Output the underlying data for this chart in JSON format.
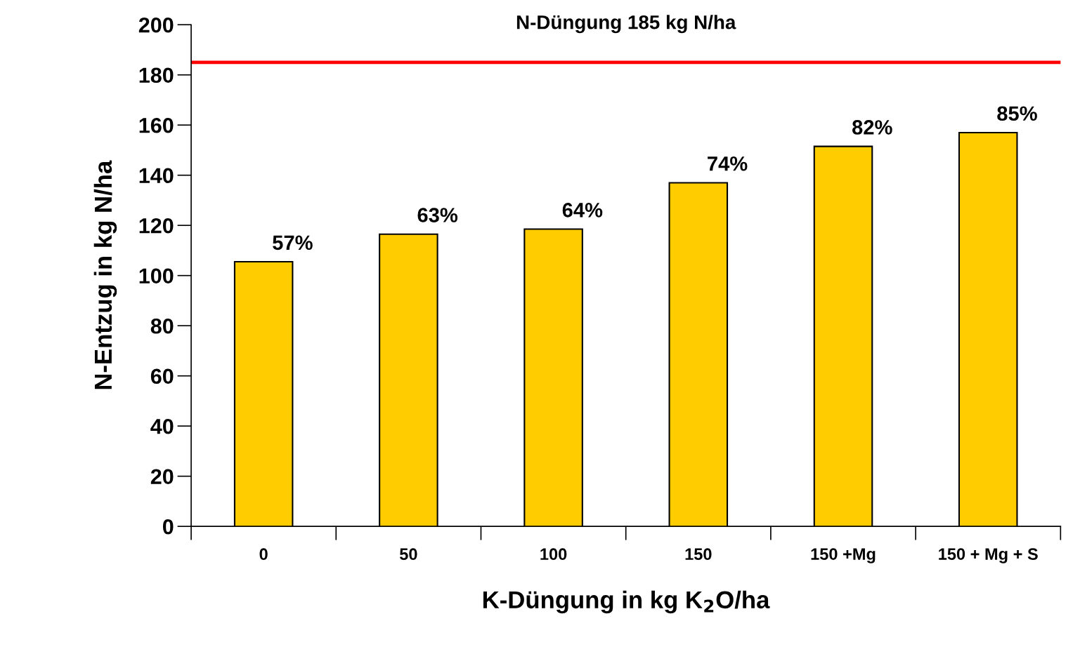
{
  "chart_data": {
    "type": "bar",
    "xlabel": "K-Düngung in kg K$_{2}$O/ha",
    "ylabel": "N-Entzug in kg N/ha",
    "categories": [
      "0",
      "50",
      "100",
      "150",
      "150 +Mg",
      "150 + Mg + S"
    ],
    "values": [
      105.5,
      116.5,
      118.5,
      137,
      151.5,
      157
    ],
    "annotations": [
      {
        "text": "57%",
        "x": "0",
        "y": 105.5
      },
      {
        "text": "63%",
        "x": "50",
        "y": 116.5
      },
      {
        "text": "64%",
        "x": "100",
        "y": 118.5
      },
      {
        "text": "74%",
        "x": "150",
        "y": 137
      },
      {
        "text": "82%",
        "x": "150 +Mg",
        "y": 151.5
      },
      {
        "text": "85%",
        "x": "150 + Mg + S",
        "y": 157
      }
    ],
    "color": "#ffcc00",
    "ylim": [
      0,
      200
    ],
    "yticks": [
      0,
      20,
      40,
      60,
      80,
      100,
      120,
      140,
      160,
      180,
      200
    ],
    "ref_lines": [
      {
        "axis": "y",
        "value": 185,
        "label": "N-Düngung 185 kg N/ha",
        "color": "#ff0000",
        "line_style": "solid"
      }
    ],
    "grid": false,
    "legend": false
  }
}
